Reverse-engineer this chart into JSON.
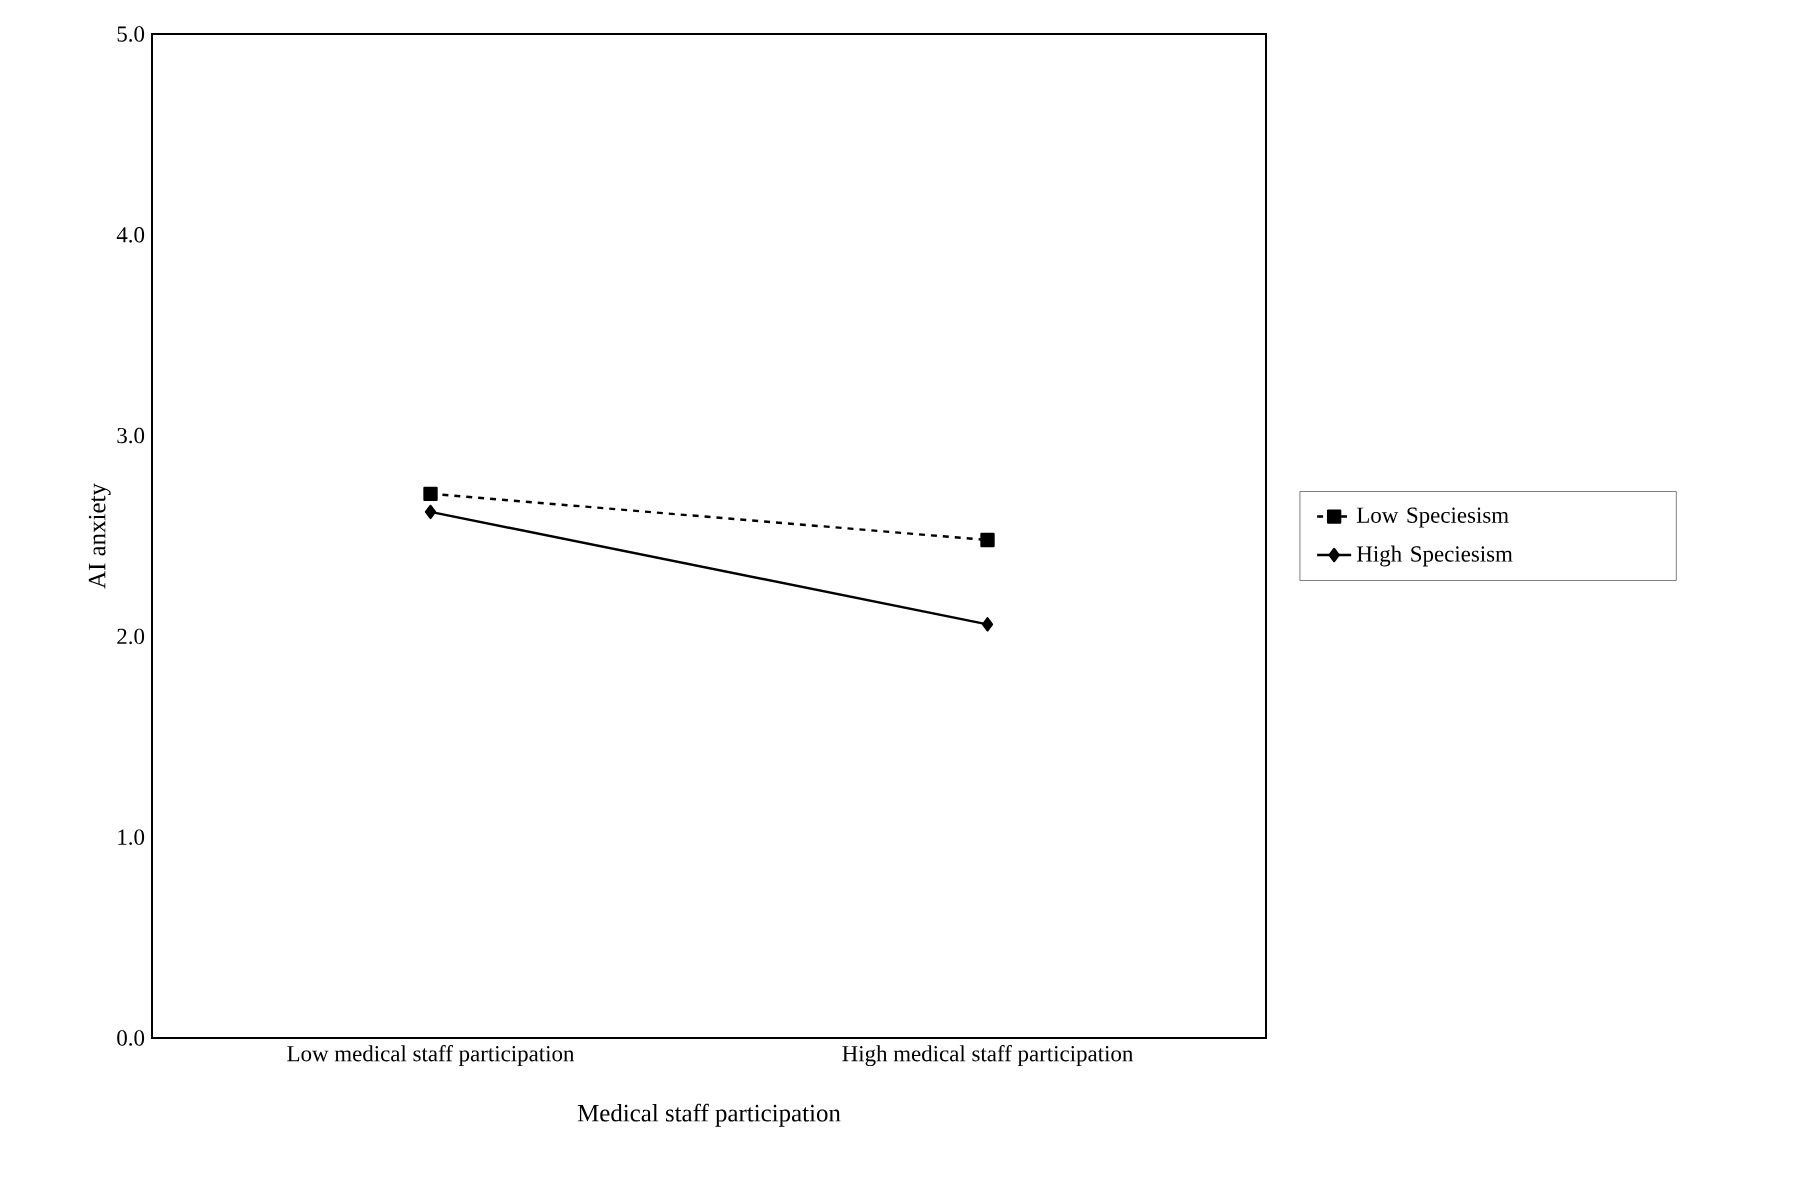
{
  "chart_data": {
    "type": "line",
    "xlabel": "Medical staff participation",
    "ylabel": "AI anxiety",
    "categories": [
      "Low medical staff participation",
      "High medical staff participation"
    ],
    "series": [
      {
        "name": "Low Speciesism",
        "color": "#000000",
        "values": [
          2.71,
          2.48
        ],
        "marker": "square",
        "line_style": "dashed"
      },
      {
        "name": "High Speciesism",
        "color": "#000000",
        "values": [
          2.62,
          2.06
        ],
        "marker": "diamond",
        "line_style": "solid"
      }
    ],
    "ylim": [
      0,
      5
    ],
    "yticks": [
      {
        "value": 0,
        "label": "0.0"
      },
      {
        "value": 1,
        "label": "1.0"
      },
      {
        "value": 2,
        "label": "2.0"
      },
      {
        "value": 3,
        "label": "3.0"
      },
      {
        "value": 4,
        "label": "4.0"
      },
      {
        "value": 5,
        "label": "5.0"
      }
    ],
    "grid": false,
    "legend": "right"
  }
}
